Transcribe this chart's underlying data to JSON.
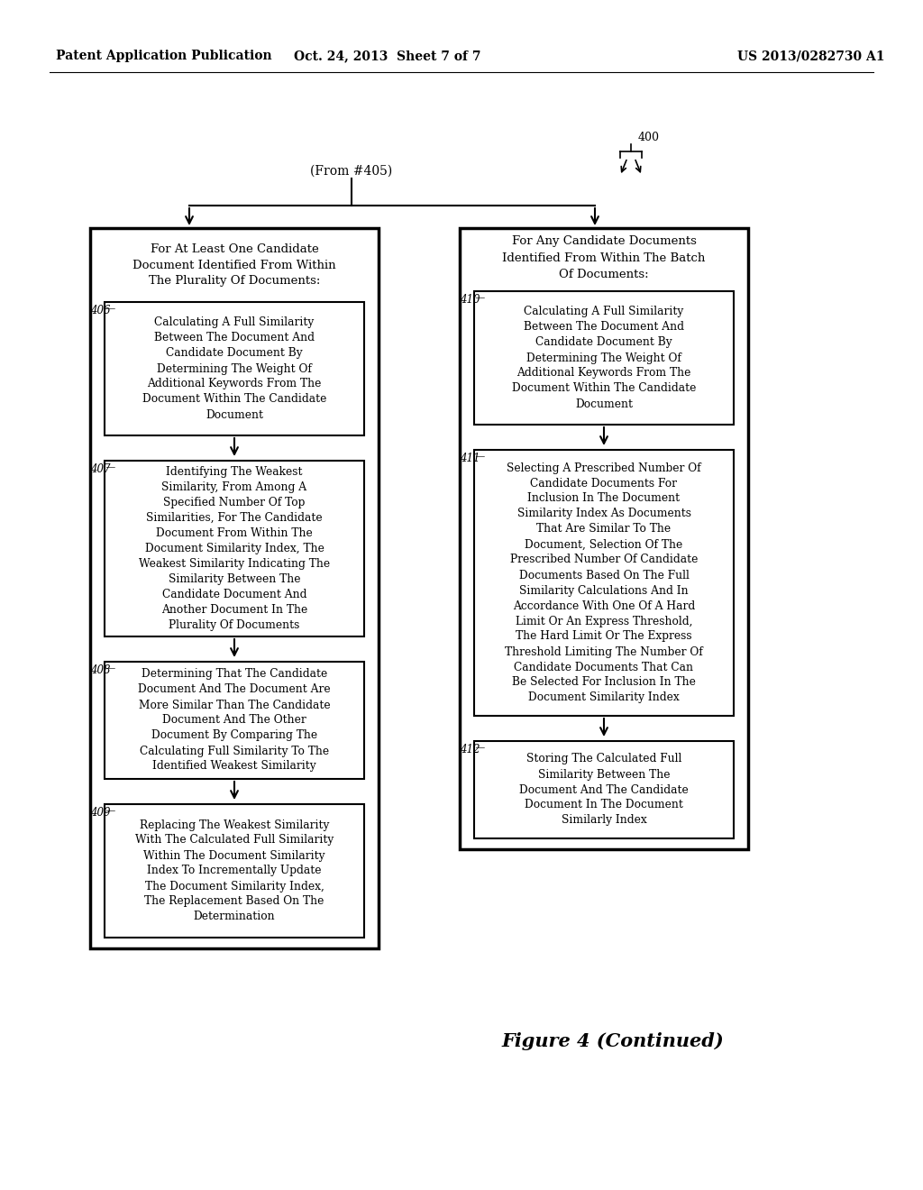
{
  "bg_color": "#ffffff",
  "header_line1": "Patent Application Publication",
  "header_line2": "Oct. 24, 2013  Sheet 7 of 7",
  "header_line3": "US 2013/0282730 A1",
  "figure_caption": "Figure 4 (Continued)",
  "from_label": "(From #405)",
  "ref_400": "400",
  "left_col_header": "For At Least One Candidate\nDocument Identified From Within\nThe Plurality Of Documents:",
  "right_col_header": "For Any Candidate Documents\nIdentified From Within The Batch\nOf Documents:",
  "box406_label": "406",
  "box406_text": "Calculating A Full Similarity\nBetween The Document And\nCandidate Document By\nDetermining The Weight Of\nAdditional Keywords From The\nDocument Within The Candidate\nDocument",
  "box407_label": "407",
  "box407_text": "Identifying The Weakest\nSimilarity, From Among A\nSpecified Number Of Top\nSimilarities, For The Candidate\nDocument From Within The\nDocument Similarity Index, The\nWeakest Similarity Indicating The\nSimilarity Between The\nCandidate Document And\nAnother Document In The\nPlurality Of Documents",
  "box408_label": "408",
  "box408_text": "Determining That The Candidate\nDocument And The Document Are\nMore Similar Than The Candidate\nDocument And The Other\nDocument By Comparing The\nCalculating Full Similarity To The\nIdentified Weakest Similarity",
  "box409_label": "409",
  "box409_text": "Replacing The Weakest Similarity\nWith The Calculated Full Similarity\nWithin The Document Similarity\nIndex To Incrementally Update\nThe Document Similarity Index,\nThe Replacement Based On The\nDetermination",
  "box410_label": "410",
  "box410_text": "Calculating A Full Similarity\nBetween The Document And\nCandidate Document By\nDetermining The Weight Of\nAdditional Keywords From The\nDocument Within The Candidate\nDocument",
  "box411_label": "411",
  "box411_text": "Selecting A Prescribed Number Of\nCandidate Documents For\nInclusion In The Document\nSimilarity Index As Documents\nThat Are Similar To The\nDocument, Selection Of The\nPrescribed Number Of Candidate\nDocuments Based On The Full\nSimilarity Calculations And In\nAccordance With One Of A Hard\nLimit Or An Express Threshold,\nThe Hard Limit Or The Express\nThreshold Limiting The Number Of\nCandidate Documents That Can\nBe Selected For Inclusion In The\nDocument Similarity Index",
  "box412_label": "412",
  "box412_text": "Storing The Calculated Full\nSimilarity Between The\nDocument And The Candidate\nDocument In The Document\nSimilarly Index"
}
